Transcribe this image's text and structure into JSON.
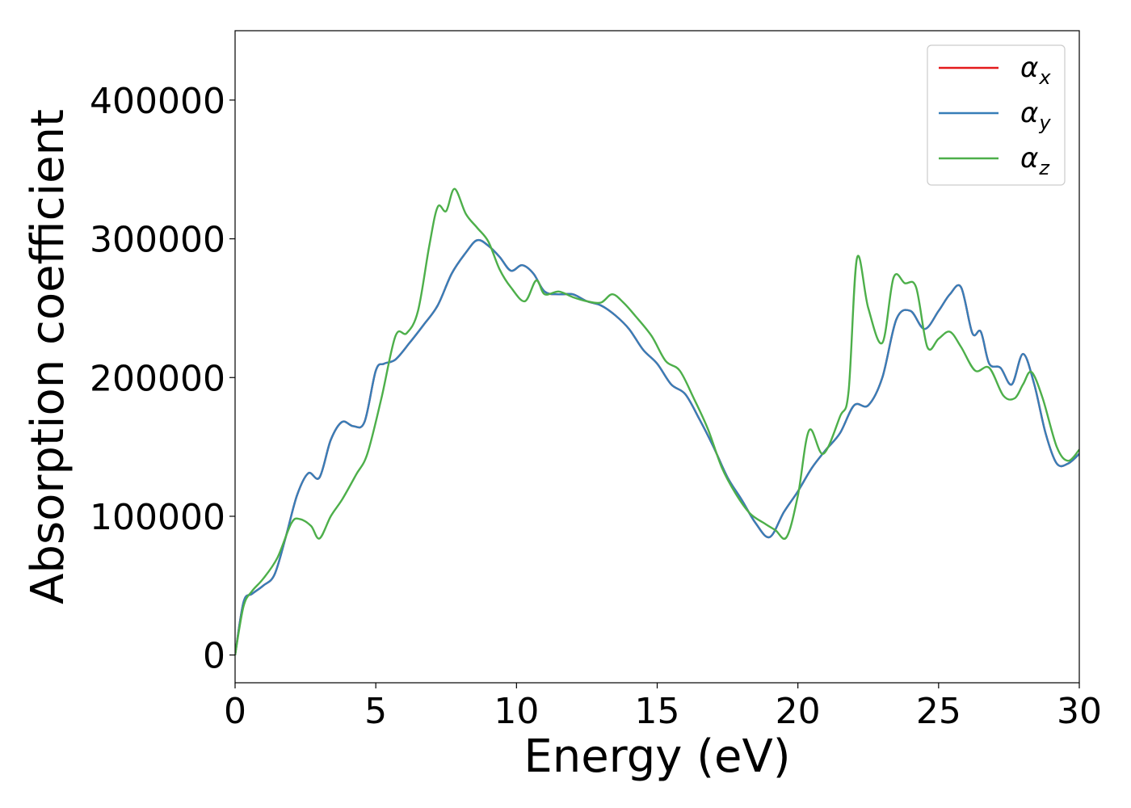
{
  "chart_data": {
    "type": "line",
    "title": "",
    "xlabel": "Energy (eV)",
    "ylabel": "Absorption coefficient",
    "xlim": [
      0,
      30
    ],
    "ylim": [
      -20000,
      450000
    ],
    "xticks": [
      0,
      5,
      10,
      15,
      20,
      25,
      30
    ],
    "yticks": [
      0,
      100000,
      200000,
      300000,
      400000
    ],
    "grid": false,
    "legend_position": "top-right",
    "series": [
      {
        "name": "α",
        "sub": "x",
        "color": "#e41a1c",
        "x": [
          0,
          0.3,
          0.6,
          1.0,
          1.4,
          1.8,
          2.2,
          2.6,
          3.0,
          3.4,
          3.8,
          4.2,
          4.6,
          5.0,
          5.3,
          5.7,
          6.2,
          6.7,
          7.2,
          7.7,
          8.2,
          8.6,
          9.0,
          9.4,
          9.8,
          10.2,
          10.6,
          11.0,
          11.5,
          12.0,
          12.5,
          13.0,
          13.5,
          14.0,
          14.5,
          15.0,
          15.5,
          16.0,
          16.5,
          17.0,
          17.5,
          18.0,
          18.5,
          19.0,
          19.5,
          20.0,
          20.5,
          21.0,
          21.5,
          22.0,
          22.5,
          23.0,
          23.5,
          24.0,
          24.5,
          25.0,
          25.4,
          25.8,
          26.2,
          26.5,
          26.8,
          27.2,
          27.6,
          28.0,
          28.4,
          28.8,
          29.2,
          29.6,
          30.0
        ],
        "y": [
          0,
          38000,
          44000,
          50000,
          58000,
          85000,
          115000,
          131000,
          128000,
          155000,
          168000,
          165000,
          168000,
          205000,
          210000,
          213000,
          225000,
          238000,
          252000,
          275000,
          290000,
          299000,
          295000,
          287000,
          277000,
          281000,
          275000,
          262000,
          260000,
          260000,
          255000,
          252000,
          245000,
          235000,
          220000,
          210000,
          195000,
          188000,
          170000,
          150000,
          128000,
          112000,
          95000,
          85000,
          103000,
          118000,
          135000,
          148000,
          160000,
          180000,
          180000,
          200000,
          242000,
          248000,
          235000,
          248000,
          260000,
          265000,
          232000,
          233000,
          210000,
          207000,
          195000,
          217000,
          195000,
          160000,
          138000,
          138000,
          145000
        ]
      },
      {
        "name": "α",
        "sub": "y",
        "color": "#377eb8",
        "x": [
          0,
          0.3,
          0.6,
          1.0,
          1.4,
          1.8,
          2.2,
          2.6,
          3.0,
          3.4,
          3.8,
          4.2,
          4.6,
          5.0,
          5.3,
          5.7,
          6.2,
          6.7,
          7.2,
          7.7,
          8.2,
          8.6,
          9.0,
          9.4,
          9.8,
          10.2,
          10.6,
          11.0,
          11.5,
          12.0,
          12.5,
          13.0,
          13.5,
          14.0,
          14.5,
          15.0,
          15.5,
          16.0,
          16.5,
          17.0,
          17.5,
          18.0,
          18.5,
          19.0,
          19.5,
          20.0,
          20.5,
          21.0,
          21.5,
          22.0,
          22.5,
          23.0,
          23.5,
          24.0,
          24.5,
          25.0,
          25.4,
          25.8,
          26.2,
          26.5,
          26.8,
          27.2,
          27.6,
          28.0,
          28.4,
          28.8,
          29.2,
          29.6,
          30.0
        ],
        "y": [
          0,
          38000,
          44000,
          50000,
          58000,
          85000,
          115000,
          131000,
          128000,
          155000,
          168000,
          165000,
          168000,
          205000,
          210000,
          213000,
          225000,
          238000,
          252000,
          275000,
          290000,
          299000,
          295000,
          287000,
          277000,
          281000,
          275000,
          262000,
          260000,
          260000,
          255000,
          252000,
          245000,
          235000,
          220000,
          210000,
          195000,
          188000,
          170000,
          150000,
          128000,
          112000,
          95000,
          85000,
          103000,
          118000,
          135000,
          148000,
          160000,
          180000,
          180000,
          200000,
          242000,
          248000,
          235000,
          248000,
          260000,
          265000,
          232000,
          233000,
          210000,
          207000,
          195000,
          217000,
          195000,
          160000,
          138000,
          138000,
          145000
        ]
      },
      {
        "name": "α",
        "sub": "z",
        "color": "#4daf4a",
        "x": [
          0,
          0.3,
          0.6,
          1.0,
          1.5,
          2.0,
          2.3,
          2.7,
          3.0,
          3.4,
          3.8,
          4.3,
          4.7,
          5.2,
          5.7,
          6.1,
          6.5,
          6.9,
          7.2,
          7.5,
          7.8,
          8.2,
          8.6,
          9.0,
          9.4,
          9.8,
          10.3,
          10.7,
          11.0,
          11.5,
          12.0,
          12.5,
          13.0,
          13.4,
          13.8,
          14.2,
          14.8,
          15.3,
          15.8,
          16.3,
          16.8,
          17.3,
          17.8,
          18.3,
          18.8,
          19.2,
          19.6,
          20.0,
          20.4,
          20.9,
          21.5,
          21.8,
          22.1,
          22.5,
          23.0,
          23.4,
          23.8,
          24.2,
          24.6,
          25.0,
          25.4,
          25.8,
          26.3,
          26.8,
          27.3,
          27.7,
          28.0,
          28.3,
          28.7,
          29.2,
          29.6,
          30.0
        ],
        "y": [
          0,
          35000,
          46000,
          55000,
          70000,
          95000,
          98000,
          93000,
          84000,
          100000,
          112000,
          130000,
          145000,
          185000,
          230000,
          232000,
          248000,
          295000,
          323000,
          320000,
          336000,
          318000,
          308000,
          298000,
          278000,
          265000,
          255000,
          270000,
          260000,
          262000,
          258000,
          255000,
          254000,
          260000,
          254000,
          245000,
          230000,
          212000,
          205000,
          185000,
          163000,
          135000,
          116000,
          102000,
          95000,
          90000,
          85000,
          115000,
          162000,
          145000,
          172000,
          190000,
          286000,
          250000,
          225000,
          272000,
          268000,
          265000,
          222000,
          228000,
          233000,
          222000,
          205000,
          207000,
          187000,
          185000,
          195000,
          204000,
          185000,
          150000,
          140000,
          148000
        ]
      }
    ]
  }
}
